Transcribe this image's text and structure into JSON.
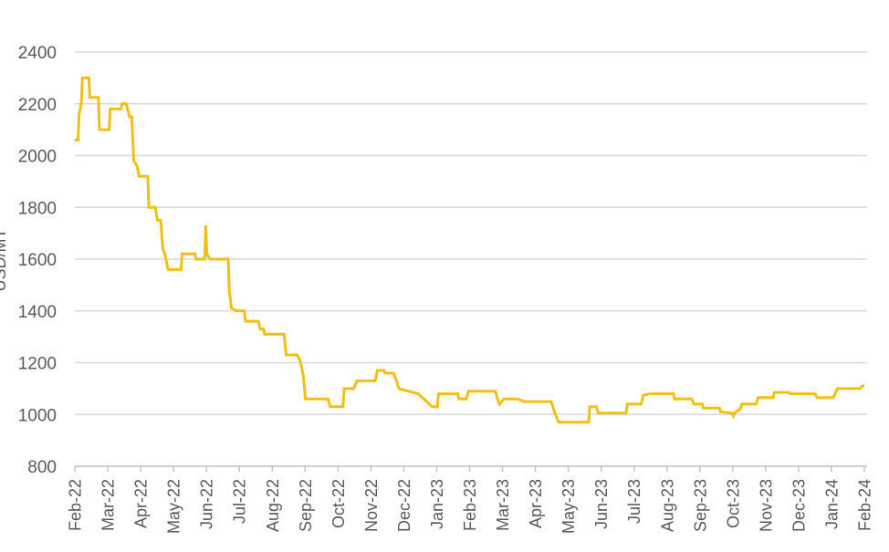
{
  "chart_data": {
    "type": "line",
    "title": "",
    "xlabel": "",
    "ylabel": "USD/MT",
    "ylim": [
      800,
      2400
    ],
    "yticks": [
      800,
      1000,
      1200,
      1400,
      1600,
      1800,
      2000,
      2200,
      2400
    ],
    "grid": true,
    "legend": "none",
    "line_color": "#F2C014",
    "x_tick_labels": [
      "Feb-22",
      "Mar-22",
      "Apr-22",
      "May-22",
      "Jun-22",
      "Jul-22",
      "Aug-22",
      "Sep-22",
      "Oct-22",
      "Nov-22",
      "Dec-22",
      "Jan-23",
      "Feb-23",
      "Mar-23",
      "Apr-23",
      "May-23",
      "Jun-23",
      "Jul-23",
      "Aug-23",
      "Sep-23",
      "Oct-23",
      "Nov-23",
      "Dec-23",
      "Jan-24",
      "Feb-24"
    ],
    "series": [
      {
        "name": "",
        "points": [
          [
            "2022-02-01",
            2060
          ],
          [
            "2022-02-04",
            2060
          ],
          [
            "2022-02-05",
            2160
          ],
          [
            "2022-02-07",
            2200
          ],
          [
            "2022-02-08",
            2300
          ],
          [
            "2022-02-14",
            2300
          ],
          [
            "2022-02-15",
            2225
          ],
          [
            "2022-02-23",
            2225
          ],
          [
            "2022-02-24",
            2100
          ],
          [
            "2022-03-05",
            2100
          ],
          [
            "2022-03-06",
            2180
          ],
          [
            "2022-03-16",
            2180
          ],
          [
            "2022-03-17",
            2200
          ],
          [
            "2022-03-21",
            2200
          ],
          [
            "2022-03-24",
            2150
          ],
          [
            "2022-03-26",
            2150
          ],
          [
            "2022-03-28",
            1980
          ],
          [
            "2022-03-31",
            1960
          ],
          [
            "2022-04-02",
            1920
          ],
          [
            "2022-04-10",
            1920
          ],
          [
            "2022-04-11",
            1800
          ],
          [
            "2022-04-17",
            1800
          ],
          [
            "2022-04-19",
            1750
          ],
          [
            "2022-04-22",
            1750
          ],
          [
            "2022-04-24",
            1640
          ],
          [
            "2022-04-26",
            1620
          ],
          [
            "2022-04-29",
            1560
          ],
          [
            "2022-05-11",
            1560
          ],
          [
            "2022-05-12",
            1620
          ],
          [
            "2022-05-24",
            1620
          ],
          [
            "2022-05-25",
            1600
          ],
          [
            "2022-06-02",
            1600
          ],
          [
            "2022-06-03",
            1730
          ],
          [
            "2022-06-04",
            1620
          ],
          [
            "2022-06-07",
            1600
          ],
          [
            "2022-06-24",
            1600
          ],
          [
            "2022-06-25",
            1480
          ],
          [
            "2022-06-27",
            1410
          ],
          [
            "2022-07-02",
            1400
          ],
          [
            "2022-07-09",
            1400
          ],
          [
            "2022-07-10",
            1360
          ],
          [
            "2022-07-22",
            1360
          ],
          [
            "2022-07-24",
            1330
          ],
          [
            "2022-07-27",
            1330
          ],
          [
            "2022-07-28",
            1310
          ],
          [
            "2022-08-15",
            1310
          ],
          [
            "2022-08-17",
            1230
          ],
          [
            "2022-08-27",
            1230
          ],
          [
            "2022-08-30",
            1210
          ],
          [
            "2022-09-02",
            1150
          ],
          [
            "2022-09-04",
            1060
          ],
          [
            "2022-09-25",
            1060
          ],
          [
            "2022-09-27",
            1030
          ],
          [
            "2022-10-09",
            1030
          ],
          [
            "2022-10-10",
            1100
          ],
          [
            "2022-10-19",
            1100
          ],
          [
            "2022-10-22",
            1130
          ],
          [
            "2022-11-08",
            1130
          ],
          [
            "2022-11-10",
            1170
          ],
          [
            "2022-11-16",
            1170
          ],
          [
            "2022-11-17",
            1160
          ],
          [
            "2022-11-25",
            1160
          ],
          [
            "2022-11-28",
            1130
          ],
          [
            "2022-11-30",
            1100
          ],
          [
            "2022-12-18",
            1080
          ],
          [
            "2022-12-26",
            1050
          ],
          [
            "2022-12-31",
            1030
          ],
          [
            "2023-01-05",
            1030
          ],
          [
            "2023-01-06",
            1080
          ],
          [
            "2023-01-24",
            1080
          ],
          [
            "2023-01-25",
            1060
          ],
          [
            "2023-02-01",
            1060
          ],
          [
            "2023-02-03",
            1090
          ],
          [
            "2023-02-28",
            1090
          ],
          [
            "2023-03-02",
            1060
          ],
          [
            "2023-03-04",
            1040
          ],
          [
            "2023-03-08",
            1060
          ],
          [
            "2023-03-21",
            1060
          ],
          [
            "2023-03-27",
            1050
          ],
          [
            "2023-04-21",
            1050
          ],
          [
            "2023-04-25",
            1000
          ],
          [
            "2023-04-28",
            970
          ],
          [
            "2023-05-26",
            970
          ],
          [
            "2023-05-27",
            1030
          ],
          [
            "2023-06-02",
            1030
          ],
          [
            "2023-06-04",
            1005
          ],
          [
            "2023-06-30",
            1005
          ],
          [
            "2023-07-01",
            1040
          ],
          [
            "2023-07-14",
            1040
          ],
          [
            "2023-07-16",
            1075
          ],
          [
            "2023-07-22",
            1080
          ],
          [
            "2023-08-13",
            1080
          ],
          [
            "2023-08-14",
            1060
          ],
          [
            "2023-08-30",
            1060
          ],
          [
            "2023-09-01",
            1040
          ],
          [
            "2023-09-09",
            1040
          ],
          [
            "2023-09-10",
            1025
          ],
          [
            "2023-09-25",
            1025
          ],
          [
            "2023-09-26",
            1010
          ],
          [
            "2023-10-07",
            1005
          ],
          [
            "2023-10-08",
            995
          ],
          [
            "2023-10-10",
            1010
          ],
          [
            "2023-10-14",
            1020
          ],
          [
            "2023-10-16",
            1040
          ],
          [
            "2023-10-29",
            1040
          ],
          [
            "2023-10-31",
            1065
          ],
          [
            "2023-11-14",
            1065
          ],
          [
            "2023-11-15",
            1085
          ],
          [
            "2023-11-29",
            1085
          ],
          [
            "2023-11-30",
            1080
          ],
          [
            "2023-12-23",
            1080
          ],
          [
            "2023-12-25",
            1065
          ],
          [
            "2024-01-09",
            1065
          ],
          [
            "2024-01-13",
            1100
          ],
          [
            "2024-02-03",
            1100
          ],
          [
            "2024-02-05",
            1110
          ],
          [
            "2024-02-07",
            1110
          ]
        ]
      }
    ]
  }
}
